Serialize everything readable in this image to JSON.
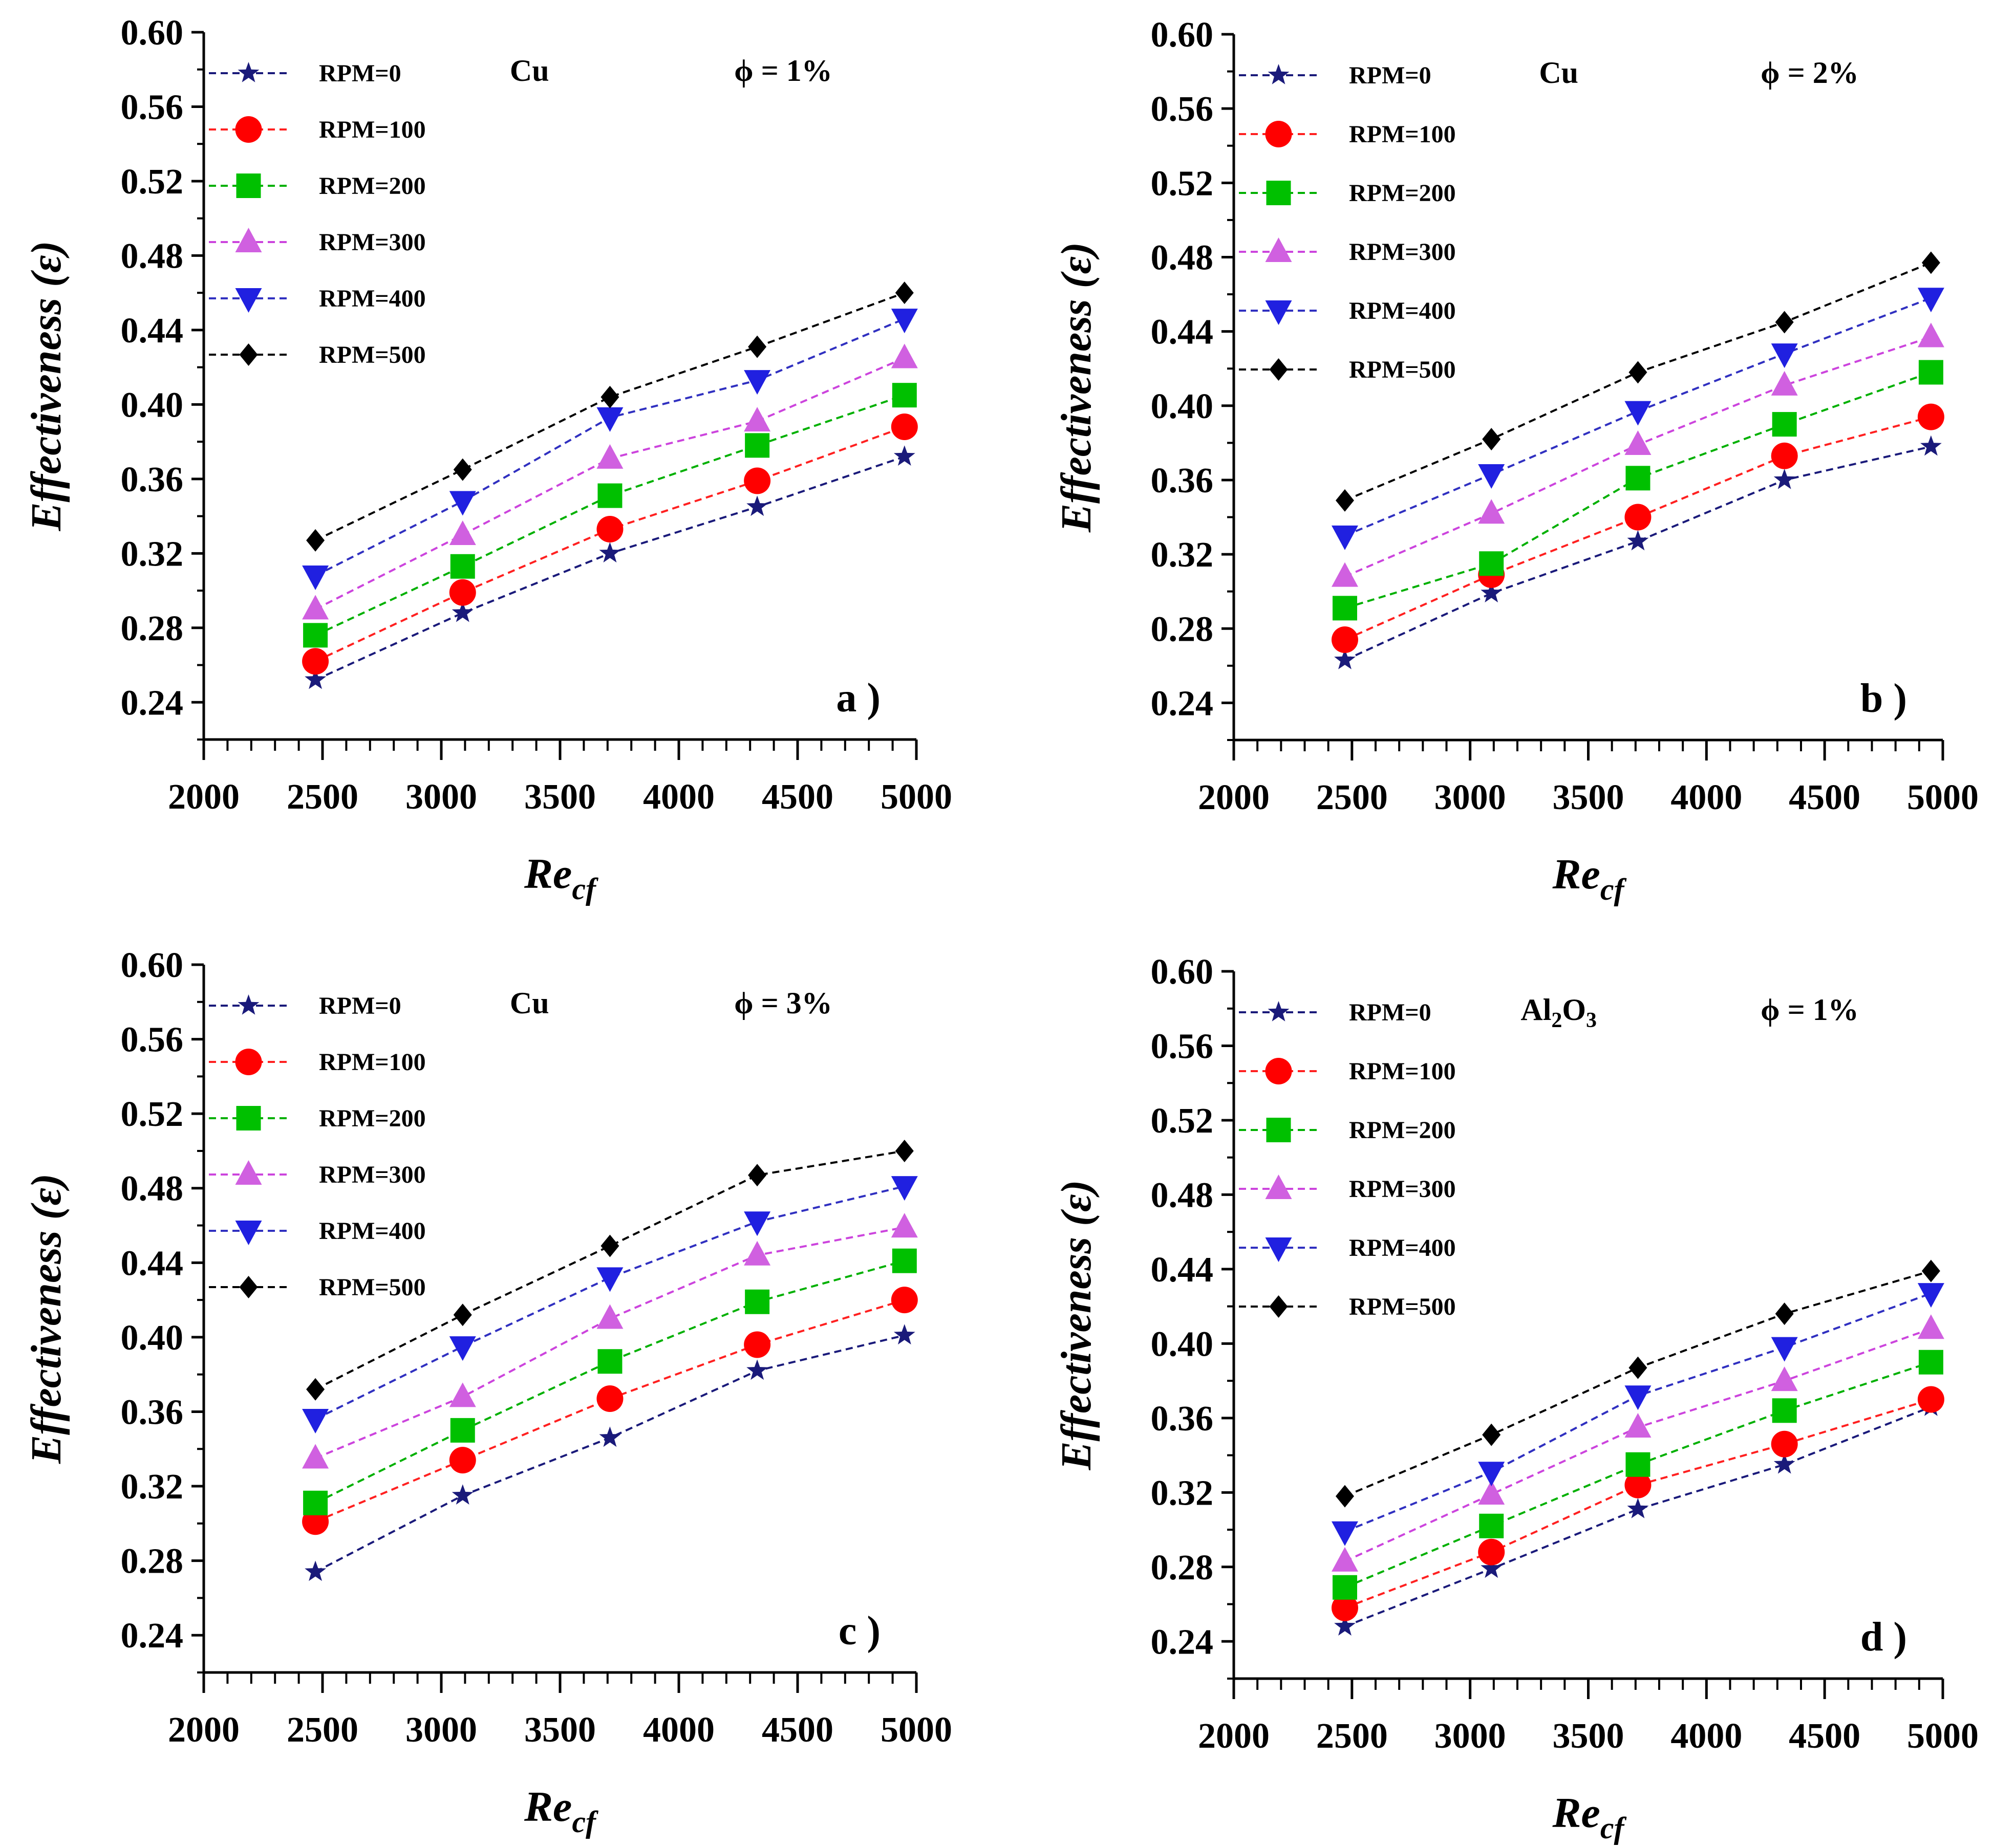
{
  "colors": {
    "axis": "#000000",
    "series": [
      "#1a1a7a",
      "#ff0000",
      "#00c000",
      "#d060e0",
      "#2020e0",
      "#000000"
    ],
    "lines": [
      "#1a1a7a",
      "#ff2020",
      "#00b000",
      "#cc44dd",
      "#3030c0",
      "#000000"
    ]
  },
  "chart_data": [
    {
      "type": "line",
      "title": "",
      "xlabel": "Re",
      "xlabel_sub": "cf",
      "ylabel": "Effectiveness (ε)",
      "xlim": [
        2000,
        5000
      ],
      "ylim": [
        0.22,
        0.6
      ],
      "xticks": [
        "2000",
        "2500",
        "3000",
        "3500",
        "4000",
        "4500",
        "5000"
      ],
      "yticks": [
        "0.24",
        "0.28",
        "0.32",
        "0.36",
        "0.40",
        "0.44",
        "0.48",
        "0.52",
        "0.56",
        "0.60"
      ],
      "material": "Cu",
      "phi_label": "ϕ = 1%",
      "panel": "a )",
      "x": [
        2470,
        3090,
        3710,
        4330,
        4950
      ],
      "series": [
        {
          "name": "RPM=0",
          "marker": "star",
          "values": [
            0.252,
            0.288,
            0.32,
            0.345,
            0.372
          ]
        },
        {
          "name": "RPM=100",
          "marker": "circle",
          "values": [
            0.262,
            0.299,
            0.333,
            0.359,
            0.388
          ]
        },
        {
          "name": "RPM=200",
          "marker": "square",
          "values": [
            0.276,
            0.313,
            0.351,
            0.378,
            0.405
          ]
        },
        {
          "name": "RPM=300",
          "marker": "triangle-up",
          "values": [
            0.29,
            0.33,
            0.371,
            0.391,
            0.425
          ]
        },
        {
          "name": "RPM=400",
          "marker": "triangle-down",
          "values": [
            0.308,
            0.348,
            0.393,
            0.413,
            0.446
          ]
        },
        {
          "name": "RPM=500",
          "marker": "diamond",
          "values": [
            0.327,
            0.365,
            0.404,
            0.431,
            0.46
          ]
        }
      ]
    },
    {
      "type": "line",
      "title": "",
      "xlabel": "Re",
      "xlabel_sub": "cf",
      "ylabel": "Effectiveness (ε)",
      "xlim": [
        2000,
        5000
      ],
      "ylim": [
        0.22,
        0.6
      ],
      "xticks": [
        "2000",
        "2500",
        "3000",
        "3500",
        "4000",
        "4500",
        "5000"
      ],
      "yticks": [
        "0.24",
        "0.28",
        "0.32",
        "0.36",
        "0.40",
        "0.44",
        "0.48",
        "0.52",
        "0.56",
        "0.60"
      ],
      "material": "Cu",
      "phi_label": "ϕ = 2%",
      "panel": "b )",
      "x": [
        2470,
        3090,
        3710,
        4330,
        4950
      ],
      "series": [
        {
          "name": "RPM=0",
          "marker": "star",
          "values": [
            0.263,
            0.299,
            0.327,
            0.36,
            0.378
          ]
        },
        {
          "name": "RPM=100",
          "marker": "circle",
          "values": [
            0.274,
            0.309,
            0.34,
            0.373,
            0.394
          ]
        },
        {
          "name": "RPM=200",
          "marker": "square",
          "values": [
            0.291,
            0.315,
            0.361,
            0.39,
            0.418
          ]
        },
        {
          "name": "RPM=300",
          "marker": "triangle-up",
          "values": [
            0.308,
            0.342,
            0.379,
            0.411,
            0.437
          ]
        },
        {
          "name": "RPM=400",
          "marker": "triangle-down",
          "values": [
            0.33,
            0.363,
            0.397,
            0.428,
            0.458
          ]
        },
        {
          "name": "RPM=500",
          "marker": "diamond",
          "values": [
            0.349,
            0.382,
            0.418,
            0.445,
            0.477
          ]
        }
      ]
    },
    {
      "type": "line",
      "title": "",
      "xlabel": "Re",
      "xlabel_sub": "cf",
      "ylabel": "Effectiveness (ε)",
      "xlim": [
        2000,
        5000
      ],
      "ylim": [
        0.22,
        0.6
      ],
      "xticks": [
        "2000",
        "2500",
        "3000",
        "3500",
        "4000",
        "4500",
        "5000"
      ],
      "yticks": [
        "0.24",
        "0.28",
        "0.32",
        "0.36",
        "0.40",
        "0.44",
        "0.48",
        "0.52",
        "0.56",
        "0.60"
      ],
      "material": "Cu",
      "phi_label": "ϕ = 3%",
      "panel": "c )",
      "x": [
        2470,
        3090,
        3710,
        4330,
        4950
      ],
      "series": [
        {
          "name": "RPM=0",
          "marker": "star",
          "values": [
            0.274,
            0.315,
            0.346,
            0.382,
            0.401
          ]
        },
        {
          "name": "RPM=100",
          "marker": "circle",
          "values": [
            0.301,
            0.334,
            0.367,
            0.396,
            0.42
          ]
        },
        {
          "name": "RPM=200",
          "marker": "square",
          "values": [
            0.311,
            0.35,
            0.387,
            0.419,
            0.441
          ]
        },
        {
          "name": "RPM=300",
          "marker": "triangle-up",
          "values": [
            0.335,
            0.368,
            0.41,
            0.444,
            0.459
          ]
        },
        {
          "name": "RPM=400",
          "marker": "triangle-down",
          "values": [
            0.356,
            0.395,
            0.432,
            0.462,
            0.481
          ]
        },
        {
          "name": "RPM=500",
          "marker": "diamond",
          "values": [
            0.372,
            0.412,
            0.449,
            0.487,
            0.5
          ]
        }
      ]
    },
    {
      "type": "line",
      "title": "",
      "xlabel": "Re",
      "xlabel_sub": "cf",
      "ylabel": "Effectiveness (ε)",
      "xlim": [
        2000,
        5000
      ],
      "ylim": [
        0.22,
        0.6
      ],
      "xticks": [
        "2000",
        "2500",
        "3000",
        "3500",
        "4000",
        "4500",
        "5000"
      ],
      "yticks": [
        "0.24",
        "0.28",
        "0.32",
        "0.36",
        "0.40",
        "0.44",
        "0.48",
        "0.52",
        "0.56",
        "0.60"
      ],
      "material": "Al",
      "material_sub1": "2",
      "material_mid": "O",
      "material_sub2": "3",
      "phi_label": "ϕ = 1%",
      "panel": "d )",
      "x": [
        2470,
        3090,
        3710,
        4330,
        4950
      ],
      "series": [
        {
          "name": "RPM=0",
          "marker": "star",
          "values": [
            0.248,
            0.279,
            0.311,
            0.335,
            0.366
          ]
        },
        {
          "name": "RPM=100",
          "marker": "circle",
          "values": [
            0.258,
            0.288,
            0.324,
            0.346,
            0.37
          ]
        },
        {
          "name": "RPM=200",
          "marker": "square",
          "values": [
            0.269,
            0.302,
            0.335,
            0.364,
            0.39
          ]
        },
        {
          "name": "RPM=300",
          "marker": "triangle-up",
          "values": [
            0.283,
            0.319,
            0.355,
            0.38,
            0.408
          ]
        },
        {
          "name": "RPM=400",
          "marker": "triangle-down",
          "values": [
            0.299,
            0.331,
            0.372,
            0.398,
            0.427
          ]
        },
        {
          "name": "RPM=500",
          "marker": "diamond",
          "values": [
            0.318,
            0.351,
            0.387,
            0.416,
            0.439
          ]
        }
      ]
    }
  ]
}
